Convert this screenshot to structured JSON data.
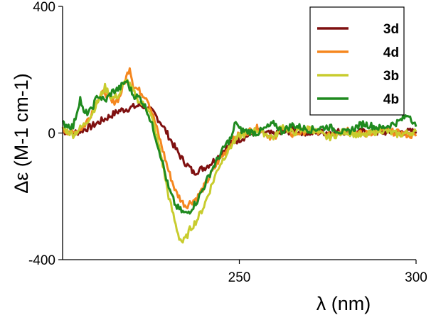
{
  "chart_data": {
    "type": "line",
    "title": "",
    "xlabel": "λ (nm)",
    "ylabel": "Δε (M-1 cm-1)",
    "xlim": [
      200,
      300
    ],
    "ylim": [
      -400,
      400
    ],
    "x_ticks": [
      250,
      300
    ],
    "y_ticks": [
      400,
      0,
      -400
    ],
    "grid": false,
    "legend_position": "top-right",
    "series": [
      {
        "name": "3d",
        "color": "#7f1010",
        "points": [
          [
            200,
            5
          ],
          [
            204,
            2
          ],
          [
            208,
            20
          ],
          [
            212,
            45
          ],
          [
            216,
            70
          ],
          [
            220,
            82
          ],
          [
            222,
            88
          ],
          [
            224,
            80
          ],
          [
            226,
            60
          ],
          [
            228,
            30
          ],
          [
            230,
            -10
          ],
          [
            232,
            -50
          ],
          [
            234,
            -85
          ],
          [
            236,
            -110
          ],
          [
            237,
            -125
          ],
          [
            238,
            -120
          ],
          [
            240,
            -110
          ],
          [
            242,
            -95
          ],
          [
            244,
            -75
          ],
          [
            246,
            -50
          ],
          [
            248,
            -30
          ],
          [
            250,
            -20
          ],
          [
            255,
            5
          ],
          [
            260,
            -5
          ],
          [
            265,
            8
          ],
          [
            270,
            0
          ],
          [
            280,
            5
          ],
          [
            290,
            2
          ],
          [
            300,
            5
          ]
        ]
      },
      {
        "name": "4d",
        "color": "#f5871f",
        "points": [
          [
            200,
            10
          ],
          [
            203,
            0
          ],
          [
            206,
            20
          ],
          [
            208,
            60
          ],
          [
            210,
            110
          ],
          [
            212,
            130
          ],
          [
            214,
            95
          ],
          [
            216,
            110
          ],
          [
            218,
            175
          ],
          [
            219,
            210
          ],
          [
            220,
            150
          ],
          [
            222,
            130
          ],
          [
            224,
            110
          ],
          [
            226,
            40
          ],
          [
            228,
            -40
          ],
          [
            230,
            -120
          ],
          [
            232,
            -185
          ],
          [
            234,
            -220
          ],
          [
            235,
            -230
          ],
          [
            236,
            -220
          ],
          [
            238,
            -205
          ],
          [
            240,
            -170
          ],
          [
            242,
            -130
          ],
          [
            244,
            -90
          ],
          [
            246,
            -60
          ],
          [
            248,
            -25
          ],
          [
            250,
            -5
          ],
          [
            255,
            15
          ],
          [
            260,
            -20
          ],
          [
            262,
            20
          ],
          [
            265,
            -5
          ],
          [
            270,
            10
          ],
          [
            275,
            -10
          ],
          [
            280,
            15
          ],
          [
            285,
            -5
          ],
          [
            290,
            10
          ],
          [
            295,
            0
          ],
          [
            300,
            -10
          ]
        ]
      },
      {
        "name": "3b",
        "color": "#c8cc2e",
        "points": [
          [
            200,
            15
          ],
          [
            203,
            -5
          ],
          [
            206,
            25
          ],
          [
            208,
            55
          ],
          [
            210,
            100
          ],
          [
            212,
            145
          ],
          [
            214,
            110
          ],
          [
            216,
            120
          ],
          [
            218,
            170
          ],
          [
            220,
            130
          ],
          [
            222,
            95
          ],
          [
            224,
            85
          ],
          [
            226,
            20
          ],
          [
            228,
            -80
          ],
          [
            230,
            -200
          ],
          [
            232,
            -290
          ],
          [
            233,
            -330
          ],
          [
            234,
            -345
          ],
          [
            235,
            -330
          ],
          [
            236,
            -305
          ],
          [
            238,
            -275
          ],
          [
            240,
            -230
          ],
          [
            242,
            -170
          ],
          [
            244,
            -110
          ],
          [
            246,
            -70
          ],
          [
            248,
            -35
          ],
          [
            250,
            -10
          ],
          [
            255,
            10
          ],
          [
            260,
            -15
          ],
          [
            262,
            25
          ],
          [
            265,
            0
          ],
          [
            270,
            15
          ],
          [
            275,
            -15
          ],
          [
            280,
            5
          ],
          [
            285,
            -10
          ],
          [
            290,
            10
          ],
          [
            295,
            -5
          ],
          [
            300,
            5
          ]
        ]
      },
      {
        "name": "4b",
        "color": "#1f8a1f",
        "points": [
          [
            200,
            30
          ],
          [
            203,
            20
          ],
          [
            205,
            110
          ],
          [
            206,
            60
          ],
          [
            208,
            70
          ],
          [
            210,
            120
          ],
          [
            212,
            100
          ],
          [
            214,
            130
          ],
          [
            216,
            140
          ],
          [
            218,
            165
          ],
          [
            220,
            120
          ],
          [
            222,
            110
          ],
          [
            224,
            70
          ],
          [
            226,
            0
          ],
          [
            228,
            -80
          ],
          [
            230,
            -175
          ],
          [
            232,
            -230
          ],
          [
            234,
            -250
          ],
          [
            235,
            -255
          ],
          [
            236,
            -245
          ],
          [
            238,
            -215
          ],
          [
            240,
            -170
          ],
          [
            242,
            -120
          ],
          [
            244,
            -80
          ],
          [
            246,
            -40
          ],
          [
            248,
            -10
          ],
          [
            249,
            40
          ],
          [
            250,
            10
          ],
          [
            255,
            0
          ],
          [
            260,
            30
          ],
          [
            262,
            5
          ],
          [
            265,
            25
          ],
          [
            270,
            10
          ],
          [
            275,
            20
          ],
          [
            280,
            0
          ],
          [
            285,
            30
          ],
          [
            290,
            15
          ],
          [
            295,
            35
          ],
          [
            298,
            60
          ],
          [
            300,
            20
          ]
        ]
      }
    ]
  }
}
